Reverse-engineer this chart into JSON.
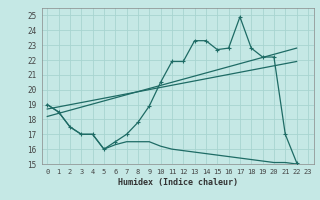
{
  "xlabel": "Humidex (Indice chaleur)",
  "background_color": "#c5e8e5",
  "grid_color": "#a8d4d0",
  "line_color": "#1e6b65",
  "xlim": [
    -0.5,
    23.5
  ],
  "ylim": [
    15,
    25.5
  ],
  "yticks": [
    15,
    16,
    17,
    18,
    19,
    20,
    21,
    22,
    23,
    24,
    25
  ],
  "xticks": [
    0,
    1,
    2,
    3,
    4,
    5,
    6,
    7,
    8,
    9,
    10,
    11,
    12,
    13,
    14,
    15,
    16,
    17,
    18,
    19,
    20,
    21,
    22,
    23
  ],
  "main_x": [
    0,
    1,
    2,
    3,
    4,
    5,
    6,
    7,
    8,
    9,
    10,
    11,
    12,
    13,
    14,
    15,
    16,
    17,
    18,
    19,
    20,
    21,
    22
  ],
  "main_y": [
    19.0,
    18.5,
    17.5,
    17.0,
    17.0,
    16.0,
    16.5,
    17.0,
    17.8,
    18.9,
    20.5,
    21.9,
    21.9,
    23.3,
    23.3,
    22.7,
    22.8,
    24.9,
    22.8,
    22.2,
    22.2,
    17.0,
    15.1
  ],
  "trend1_x": [
    0,
    22
  ],
  "trend1_y": [
    18.2,
    22.8
  ],
  "trend2_x": [
    0,
    22
  ],
  "trend2_y": [
    18.7,
    21.9
  ],
  "bottom_x": [
    0,
    1,
    2,
    3,
    4,
    5,
    6,
    7,
    8,
    9,
    10,
    11,
    12,
    13,
    14,
    15,
    16,
    17,
    18,
    19,
    20,
    21,
    22
  ],
  "bottom_y": [
    19.0,
    18.5,
    17.5,
    17.0,
    17.0,
    16.0,
    16.3,
    16.5,
    16.5,
    16.5,
    16.2,
    16.0,
    15.9,
    15.8,
    15.7,
    15.6,
    15.5,
    15.4,
    15.3,
    15.2,
    15.1,
    15.1,
    15.0
  ]
}
